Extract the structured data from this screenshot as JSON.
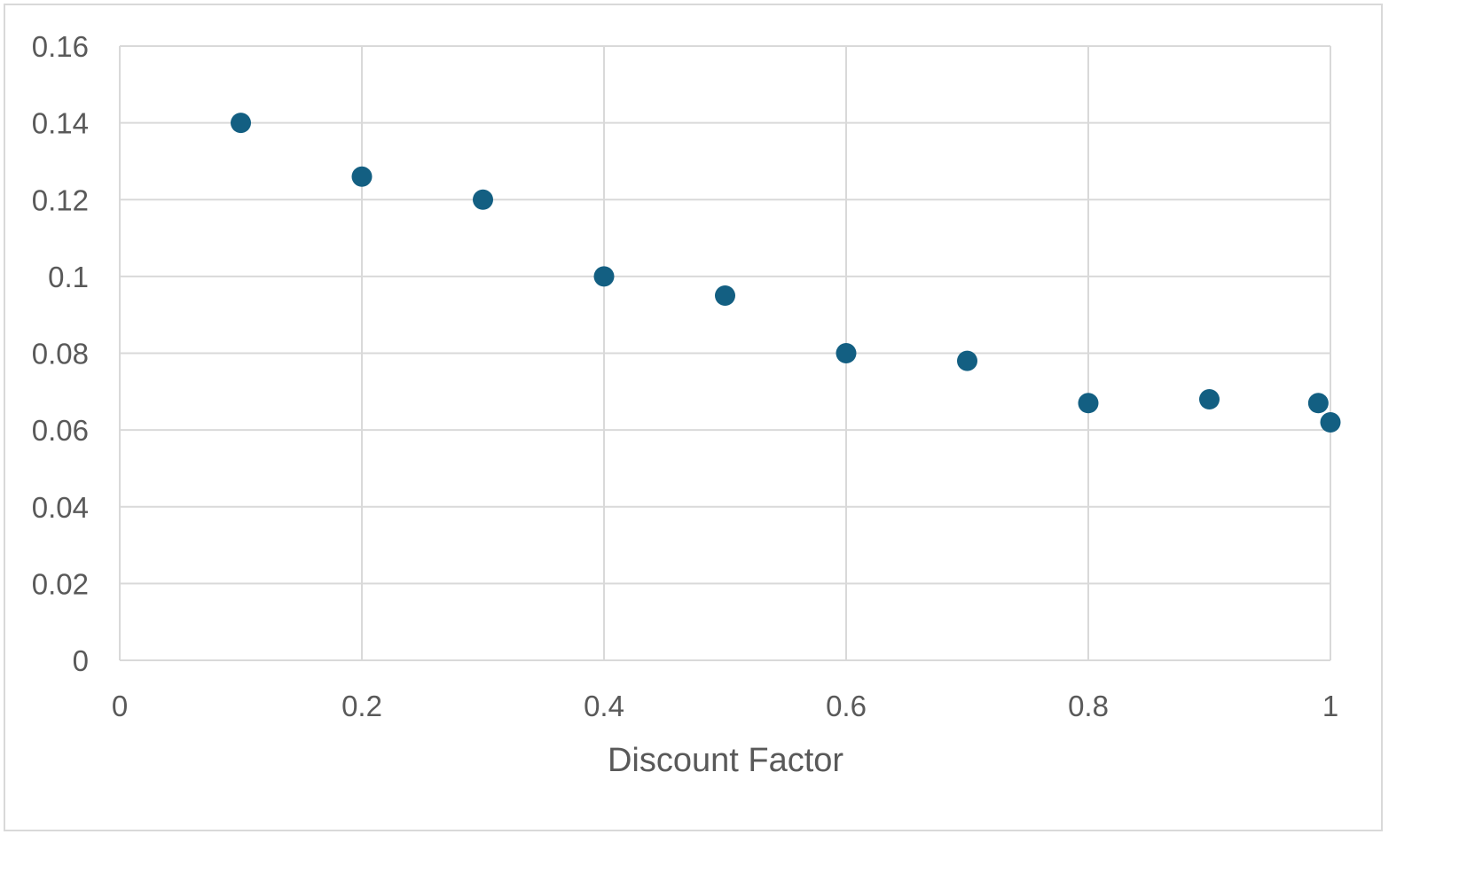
{
  "chart_data": {
    "type": "scatter",
    "title": "",
    "xlabel": "Discount Factor",
    "ylabel": "",
    "xlim": [
      0,
      1
    ],
    "ylim": [
      0,
      0.16
    ],
    "grid": true,
    "legend": "none",
    "x_ticks": [
      "0",
      "0.2",
      "0.4",
      "0.6",
      "0.8",
      "1"
    ],
    "y_ticks": [
      "0",
      "0.02",
      "0.04",
      "0.06",
      "0.08",
      "0.1",
      "0.12",
      "0.14",
      "0.16"
    ],
    "series": [
      {
        "x": [
          0.1,
          0.2,
          0.3,
          0.4,
          0.5,
          0.6,
          0.7,
          0.8,
          0.9,
          0.99,
          1.0
        ],
        "y": [
          0.14,
          0.126,
          0.12,
          0.1,
          0.095,
          0.08,
          0.078,
          0.067,
          0.068,
          0.067,
          0.062
        ]
      }
    ],
    "colors": {
      "marker": "#135f82",
      "grid": "#d9d9d9",
      "text": "#595959"
    }
  }
}
